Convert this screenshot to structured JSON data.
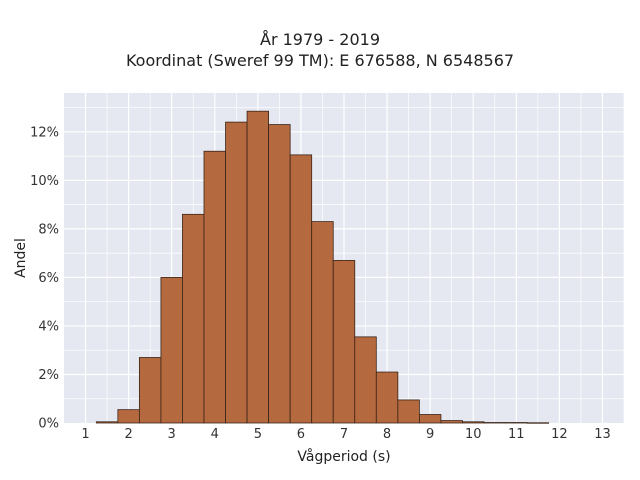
{
  "chart_data": {
    "type": "bar",
    "title": "År 1979 - 2019",
    "subtitle": "Koordinat (Sweref 99 TM): E 676588, N 6548567",
    "xlabel": "Vågperiod (s)",
    "ylabel": "Andel",
    "bin_width": 0.5,
    "x": [
      1.5,
      2.0,
      2.5,
      3.0,
      3.5,
      4.0,
      4.5,
      5.0,
      5.5,
      6.0,
      6.5,
      7.0,
      7.5,
      8.0,
      8.5,
      9.0,
      9.5,
      10.0,
      10.5,
      11.0,
      11.5
    ],
    "values": [
      0.05,
      0.55,
      2.7,
      6.0,
      8.6,
      11.2,
      12.4,
      12.85,
      12.3,
      11.05,
      8.3,
      6.7,
      3.55,
      2.1,
      0.95,
      0.35,
      0.1,
      0.05,
      0.02,
      0.02,
      0.01
    ],
    "xlim": [
      0.5,
      13.5
    ],
    "ylim": [
      0,
      13.6
    ],
    "x_ticks": [
      "1",
      "2",
      "3",
      "4",
      "5",
      "6",
      "7",
      "8",
      "9",
      "10",
      "11",
      "12",
      "13"
    ],
    "y_ticks": [
      "0%",
      "2%",
      "4%",
      "6%",
      "8%",
      "10%",
      "12%"
    ],
    "bar_color": "#b5693e",
    "bar_edge_color": "#3a2418",
    "plot_background": "#e5e8f0",
    "grid": true
  }
}
